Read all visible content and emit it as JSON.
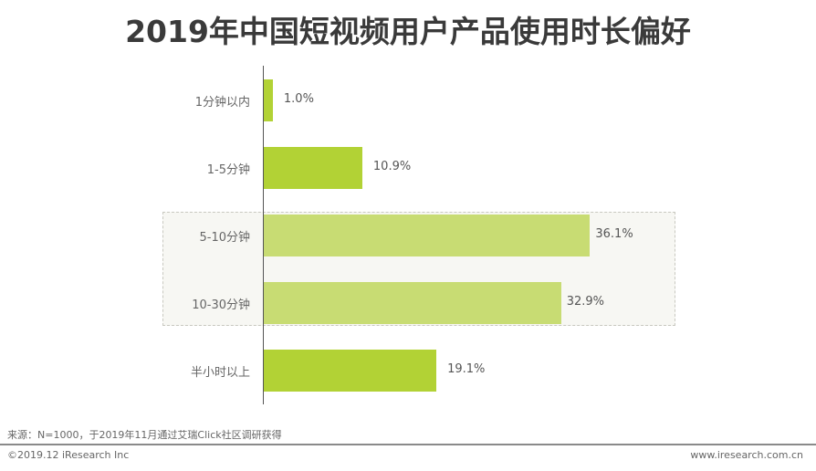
{
  "title": "2019年中国短视频用户产品使用时长偏好",
  "chart_data": {
    "type": "bar",
    "orientation": "horizontal",
    "title": "2019年中国短视频用户产品使用时长偏好",
    "categories": [
      "1分钟以内",
      "1-5分钟",
      "5-10分钟",
      "10-30分钟",
      "半小时以上"
    ],
    "values": [
      1.0,
      10.9,
      36.1,
      32.9,
      19.1
    ],
    "value_labels": [
      "1.0%",
      "10.9%",
      "36.1%",
      "32.9%",
      "19.1%"
    ],
    "unit": "%",
    "xlabel": "",
    "ylabel": "",
    "grid": false,
    "highlighted_categories": [
      "5-10分钟",
      "10-30分钟"
    ],
    "colors": {
      "bar": "#b2d235",
      "bar_highlighted": "#c8dc73",
      "highlight_bg": "#f7f7f3"
    }
  },
  "footer": {
    "source": "来源：N=1000，于2019年11月通过艾瑞Click社区调研获得",
    "copyright": "©2019.12 iResearch Inc",
    "website": "www.iresearch.com.cn"
  }
}
